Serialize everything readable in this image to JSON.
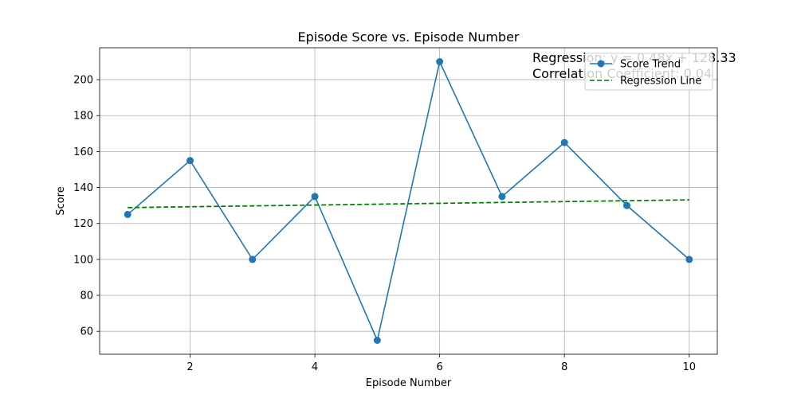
{
  "chart_data": {
    "type": "line",
    "title": "Episode Score vs. Episode Number",
    "xlabel": "Episode Number",
    "ylabel": "Score",
    "x": [
      1,
      2,
      3,
      4,
      5,
      6,
      7,
      8,
      9,
      10
    ],
    "xlim": [
      0.55,
      10.45
    ],
    "ylim": [
      47.25,
      217.75
    ],
    "xticks": [
      2,
      4,
      6,
      8,
      10
    ],
    "yticks": [
      60,
      80,
      100,
      120,
      140,
      160,
      180,
      200
    ],
    "grid": true,
    "legend_position": "top-right",
    "series": [
      {
        "name": "Score Trend",
        "style": "line-markers",
        "color": "#1f77b4",
        "values": [
          125,
          155,
          100,
          135,
          55,
          210,
          135,
          165,
          130,
          100
        ]
      },
      {
        "name": "Regression Line",
        "style": "dashed",
        "color": "#008000",
        "values": [
          128.81,
          129.29,
          129.77,
          130.25,
          130.73,
          131.21,
          131.69,
          132.17,
          132.65,
          133.13
        ]
      }
    ],
    "annotations": [
      "Regression: y = 0.48x + 128.33",
      "Correlation Coefficient: 0.04"
    ]
  }
}
